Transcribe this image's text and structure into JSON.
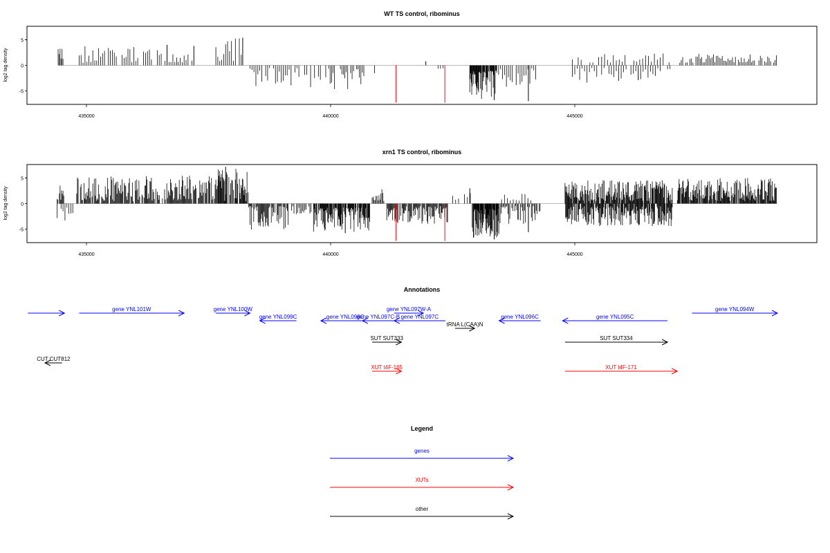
{
  "chart_data": [
    {
      "type": "bar",
      "title": "WT TS control, ribominus",
      "ylabel": "log2 tag density",
      "xlim": [
        433800,
        449900
      ],
      "ylim": [
        -7.5,
        7.5
      ],
      "yticks": [
        -5,
        0,
        5
      ],
      "xticks": [
        435000,
        440000,
        445000
      ],
      "grid": false,
      "series": [
        {
          "name": "",
          "color": "#000000",
          "segments": [
            {
              "from": 434420,
              "to": 434520,
              "min": 0.5,
              "max": 3.4,
              "step": 20,
              "seed": 3
            },
            {
              "from": 434850,
              "to": 436850,
              "min": 0.5,
              "max": 3.8,
              "step": 40,
              "seed": 5
            },
            {
              "from": 436880,
              "to": 437180,
              "min": 0.5,
              "max": 3.3,
              "step": 40,
              "seed": 7
            },
            {
              "from": 437650,
              "to": 438200,
              "min": 0.5,
              "max": 5.3,
              "step": 40,
              "seed": 9
            },
            {
              "from": 438350,
              "to": 439800,
              "min": -4.3,
              "max": -0.5,
              "step": 40,
              "seed": 11
            },
            {
              "from": 439900,
              "to": 440700,
              "min": -4.8,
              "max": -0.6,
              "step": 30,
              "seed": 13
            },
            {
              "from": 440900,
              "to": 441000,
              "min": -1.6,
              "max": -0.5,
              "step": 50,
              "seed": 15
            },
            {
              "from": 442200,
              "to": 442300,
              "min": -1.1,
              "max": -0.5,
              "step": 50,
              "seed": 17
            },
            {
              "from": 442850,
              "to": 443400,
              "min": -6.6,
              "max": -1.0,
              "step": 10,
              "seed": 19
            },
            {
              "from": 443400,
              "to": 444200,
              "min": -4.2,
              "max": -0.5,
              "step": 40,
              "seed": 21
            },
            {
              "from": 444950,
              "to": 446950,
              "min": -3.5,
              "max": -0.5,
              "step": 50,
              "seed": 23
            },
            {
              "from": 444950,
              "to": 447000,
              "min": 0.5,
              "max": 2.4,
              "step": 60,
              "seed": 25
            },
            {
              "from": 447150,
              "to": 449150,
              "min": 0.5,
              "max": 2.4,
              "step": 30,
              "seed": 27
            }
          ],
          "spikes": [
            {
              "x": 437200,
              "y": 3.8
            },
            {
              "x": 438200,
              "y": 5.4
            },
            {
              "x": 443350,
              "y": -6.8
            },
            {
              "x": 444050,
              "y": -7.0
            },
            {
              "x": 436650,
              "y": 4.0
            },
            {
              "x": 441950,
              "y": 0.8
            },
            {
              "x": 446300,
              "y": -2.9
            }
          ]
        },
        {
          "name": "",
          "color": "#ff0000",
          "spikes": [
            {
              "x": 441340,
              "y": -7.3
            },
            {
              "x": 442340,
              "y": -7.3
            }
          ]
        }
      ]
    },
    {
      "type": "bar",
      "title": "xrn1 TS control, ribominus",
      "ylabel": "log2 tag density",
      "xlim": [
        433800,
        449900
      ],
      "ylim": [
        -7.5,
        7.5
      ],
      "yticks": [
        -5,
        0,
        5
      ],
      "xticks": [
        435000,
        440000,
        445000
      ],
      "grid": false,
      "series": [
        {
          "name": "",
          "color": "#000000",
          "segments": [
            {
              "from": 434400,
              "to": 434540,
              "min": 0.5,
              "max": 3.6,
              "step": 15,
              "seed": 31
            },
            {
              "from": 434400,
              "to": 434760,
              "min": -3.5,
              "max": -0.5,
              "step": 40,
              "seed": 33
            },
            {
              "from": 434800,
              "to": 437700,
              "min": 0.5,
              "max": 5.5,
              "step": 15,
              "seed": 35
            },
            {
              "from": 437700,
              "to": 438320,
              "min": 0.5,
              "max": 6.8,
              "step": 12,
              "seed": 37
            },
            {
              "from": 438320,
              "to": 439200,
              "min": -5.2,
              "max": -0.5,
              "step": 15,
              "seed": 39
            },
            {
              "from": 439200,
              "to": 439600,
              "min": -2.5,
              "max": -0.5,
              "step": 25,
              "seed": 41
            },
            {
              "from": 439650,
              "to": 440800,
              "min": -5.6,
              "max": -0.8,
              "step": 10,
              "seed": 43
            },
            {
              "from": 440850,
              "to": 441100,
              "min": 0.5,
              "max": 3.2,
              "step": 20,
              "seed": 45
            },
            {
              "from": 441150,
              "to": 442400,
              "min": -4.0,
              "max": -0.5,
              "step": 15,
              "seed": 47
            },
            {
              "from": 442500,
              "to": 442900,
              "min": 0.5,
              "max": 2.8,
              "step": 60,
              "seed": 49
            },
            {
              "from": 442900,
              "to": 443450,
              "min": -7.0,
              "max": -1.0,
              "step": 8,
              "seed": 51
            },
            {
              "from": 443450,
              "to": 444300,
              "min": -4.0,
              "max": -0.5,
              "step": 20,
              "seed": 53
            },
            {
              "from": 443500,
              "to": 444100,
              "min": 0.5,
              "max": 2.0,
              "step": 60,
              "seed": 55
            },
            {
              "from": 444800,
              "to": 447000,
              "min": 0.5,
              "max": 4.6,
              "step": 12,
              "seed": 57
            },
            {
              "from": 444800,
              "to": 447000,
              "min": -4.5,
              "max": -0.5,
              "step": 12,
              "seed": 59
            },
            {
              "from": 447100,
              "to": 449150,
              "min": 0.5,
              "max": 5.0,
              "step": 12,
              "seed": 61
            }
          ],
          "spikes": [
            {
              "x": 437850,
              "y": 7.2
            },
            {
              "x": 440300,
              "y": -5.8
            },
            {
              "x": 443350,
              "y": -7.0
            },
            {
              "x": 442850,
              "y": 3.0
            },
            {
              "x": 444050,
              "y": -5.6
            }
          ]
        },
        {
          "name": "",
          "color": "#ff0000",
          "spikes": [
            {
              "x": 441340,
              "y": -7.3
            },
            {
              "x": 442340,
              "y": -7.3
            }
          ]
        }
      ]
    }
  ],
  "annotations": {
    "title": "Annotations",
    "colors": {
      "genes": "#0000ff",
      "xuts": "#ff0000",
      "other": "#000000"
    },
    "features": [
      {
        "label": "",
        "start": 433800,
        "end": 434550,
        "strand": "+",
        "row": 0,
        "color": "#0000ff"
      },
      {
        "label": "gene YNL101W",
        "start": 434850,
        "end": 437000,
        "strand": "+",
        "row": 0,
        "color": "#0000ff"
      },
      {
        "label": "gene YNL100W",
        "start": 437650,
        "end": 438350,
        "strand": "+",
        "row": 0,
        "color": "#0000ff"
      },
      {
        "label": "gene YNL099C",
        "start": 438550,
        "end": 439300,
        "strand": "-",
        "row": 1,
        "color": "#0000ff"
      },
      {
        "label": "gene YNL098C",
        "start": 439800,
        "end": 440800,
        "strand": "-",
        "row": 1,
        "color": "#0000ff"
      },
      {
        "label": "gene YNL097C-B",
        "start": 440650,
        "end": 441300,
        "strand": "-",
        "row": 1,
        "color": "#0000ff"
      },
      {
        "label": "gene YNL097W-A",
        "start": 441300,
        "end": 441900,
        "strand": "+",
        "row": 0,
        "color": "#0000ff"
      },
      {
        "label": "gene YNL097C",
        "start": 441300,
        "end": 442350,
        "strand": "-",
        "row": 1,
        "color": "#0000ff"
      },
      {
        "label": "tRNA L(CAA)N",
        "start": 442550,
        "end": 442950,
        "strand": "+",
        "row": 2,
        "color": "#000000"
      },
      {
        "label": "gene YNL096C",
        "start": 443450,
        "end": 444300,
        "strand": "-",
        "row": 1,
        "color": "#0000ff"
      },
      {
        "label": "gene YNL095C",
        "start": 444750,
        "end": 446900,
        "strand": "-",
        "row": 1,
        "color": "#0000ff"
      },
      {
        "label": "gene YNL094W",
        "start": 447400,
        "end": 449150,
        "strand": "+",
        "row": 0,
        "color": "#0000ff"
      },
      {
        "label": "SUT SUT333",
        "start": 440850,
        "end": 441450,
        "strand": "+",
        "row": 3,
        "color": "#000000"
      },
      {
        "label": "SUT SUT334",
        "start": 444800,
        "end": 446900,
        "strand": "+",
        "row": 3,
        "color": "#000000"
      },
      {
        "label": "CUT CUT812",
        "start": 434150,
        "end": 434500,
        "strand": "-",
        "row": 4,
        "color": "#000000"
      },
      {
        "label": "XUT t4F-165",
        "start": 440850,
        "end": 441450,
        "strand": "+",
        "row": 5,
        "color": "#ff0000"
      },
      {
        "label": "XUT t4F-171",
        "start": 444800,
        "end": 447100,
        "strand": "+",
        "row": 5,
        "color": "#ff0000"
      }
    ]
  },
  "legend": {
    "title": "Legend",
    "items": [
      {
        "label": "genes",
        "color": "#0000ff"
      },
      {
        "label": "XUTs",
        "color": "#ff0000"
      },
      {
        "label": "other",
        "color": "#000000"
      }
    ]
  }
}
